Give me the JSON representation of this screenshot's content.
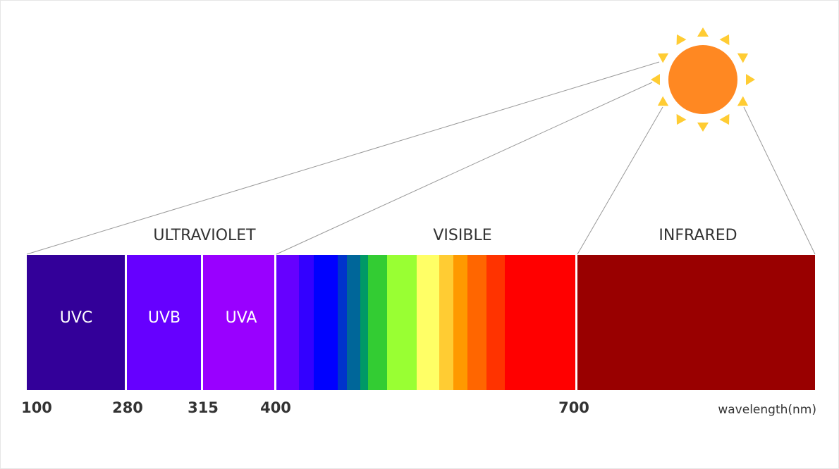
{
  "regions": [
    "ULTRAVIOLET",
    "VISIBLE",
    "INFRARED"
  ],
  "bands": [
    "UVC",
    "UVB",
    "UVA"
  ],
  "wavelengths": [
    "100",
    "280",
    "315",
    "400",
    "700"
  ],
  "axis_label": "wavelength(nm)"
}
